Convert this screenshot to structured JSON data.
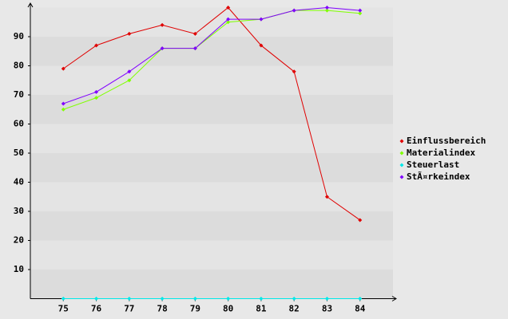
{
  "chart_data": {
    "type": "line",
    "categories": [
      "75",
      "76",
      "77",
      "78",
      "79",
      "80",
      "81",
      "82",
      "83",
      "84"
    ],
    "series": [
      {
        "name": "Einflussbereich",
        "color": "#e00000",
        "values": [
          79,
          87,
          91,
          94,
          91,
          100,
          87,
          78,
          35,
          27
        ]
      },
      {
        "name": "Materialindex",
        "color": "#80ff00",
        "values": [
          65,
          69,
          75,
          86,
          86,
          95,
          96,
          99,
          99,
          98
        ]
      },
      {
        "name": "Steuerlast",
        "color": "#00e8e8",
        "values": [
          0,
          0,
          0,
          0,
          0,
          0,
          0,
          0,
          0,
          0
        ]
      },
      {
        "name": "StÃ¤rkeindex",
        "color": "#8000ff",
        "values": [
          67,
          71,
          78,
          86,
          86,
          96,
          96,
          99,
          100,
          99
        ]
      }
    ],
    "ylim": [
      0,
      100
    ],
    "yticks": [
      10,
      20,
      30,
      40,
      50,
      60,
      70,
      80,
      90
    ],
    "legend": "right"
  }
}
